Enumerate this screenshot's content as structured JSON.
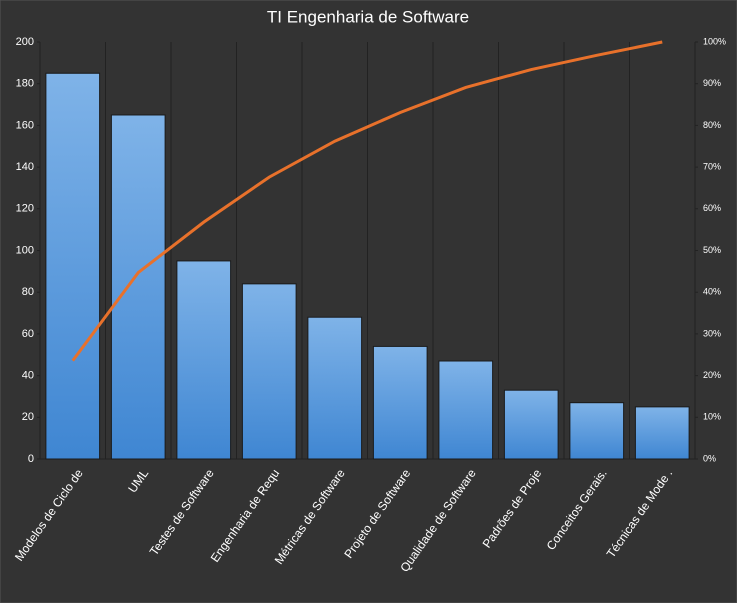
{
  "chart_data": {
    "type": "bar",
    "title": "TI Engenharia de Software",
    "categories": [
      "Modelos de Ciclo de",
      "UML",
      "Testes de Software",
      "Engenharia de Requ",
      "Métricas de Software",
      "Projeto de Software",
      "Qualidade de Software",
      "Padrões de Proje",
      "Conceitos Gerais.",
      "Técnicas de Mode ."
    ],
    "series": [
      {
        "type": "bar",
        "color": "#4f94db",
        "values": [
          185,
          165,
          95,
          84,
          68,
          54,
          47,
          33,
          27,
          25
        ]
      },
      {
        "type": "line",
        "color": "#e8712b",
        "axis": "y2",
        "values": [
          23.6,
          44.7,
          56.8,
          67.6,
          76.2,
          83.1,
          89.1,
          93.4,
          96.8,
          100
        ]
      }
    ],
    "ylim": [
      0,
      200
    ],
    "yticks": [
      0,
      20,
      40,
      60,
      80,
      100,
      120,
      140,
      160,
      180,
      200
    ],
    "y2lim": [
      0,
      100
    ],
    "y2ticks": [
      {
        "value": 0,
        "label": "0%"
      },
      {
        "value": 10,
        "label": "10%"
      },
      {
        "value": 20,
        "label": "20%"
      },
      {
        "value": 30,
        "label": "30%"
      },
      {
        "value": 40,
        "label": "40%"
      },
      {
        "value": 50,
        "label": "50%"
      },
      {
        "value": 60,
        "label": "60%"
      },
      {
        "value": 70,
        "label": "70%"
      },
      {
        "value": 80,
        "label": "80%"
      },
      {
        "value": 90,
        "label": "90%"
      },
      {
        "value": 100,
        "label": "100%"
      }
    ]
  }
}
